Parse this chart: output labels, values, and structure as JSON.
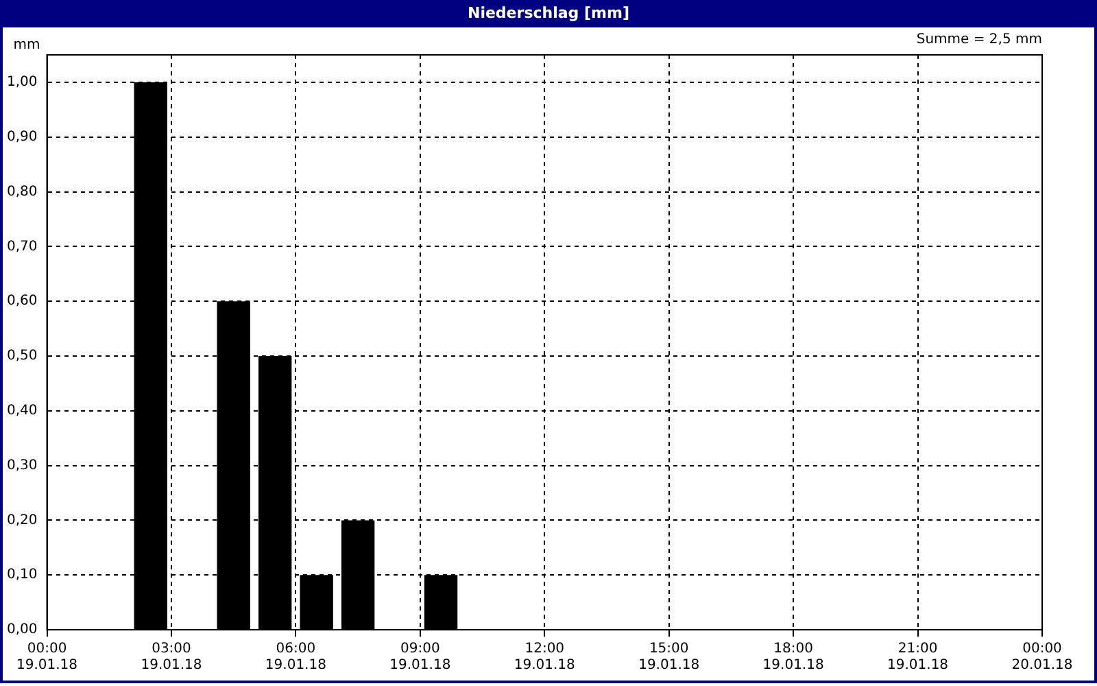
{
  "chart_data": {
    "type": "histogram",
    "title": "Niederschlag [mm]",
    "ylabel": "mm",
    "annotations": [
      "Summe = 2,5 mm"
    ],
    "bins": [
      "--01-19T00:00",
      "--01-19T01:00",
      "--01-19T02:00",
      "--01-19T03:00",
      "--01-19T04:00",
      "--01-19T05:00",
      "--01-19T06:00",
      "--01-19T07:00",
      "--01-19T08:00",
      "--01-19T09:00",
      "--01-19T10:00",
      "--01-19T11:00",
      "--01-19T12:00",
      "--01-19T13:00",
      "--01-19T14:00",
      "--01-19T15:00",
      "--01-19T16:00",
      "--01-19T17:00",
      "--01-19T18:00",
      "--01-19T19:00",
      "--01-19T20:00",
      "--01-19T21:00",
      "--01-19T22:00",
      "--01-19T23:00",
      "--01-20T00:00"
    ],
    "values": [
      0,
      0,
      1.0,
      0,
      0.6,
      0.5,
      0.1,
      0.2,
      0,
      0.1,
      0,
      0,
      0,
      0,
      0,
      0,
      0,
      0,
      0,
      0,
      0,
      0,
      0,
      0
    ],
    "color": "#000000",
    "xlim": [
      "--01-19T00:00",
      "--01-20T00:00"
    ],
    "xticks": [
      {
        "value": "--01-19T00:00",
        "label": "00:00\n19.01.18"
      },
      {
        "value": "--01-19T03:00",
        "label": "03:00\n19.01.18"
      },
      {
        "value": "--01-19T06:00",
        "label": "06:00\n19.01.18"
      },
      {
        "value": "--01-19T09:00",
        "label": "09:00\n19.01.18"
      },
      {
        "value": "--01-19T12:00",
        "label": "12:00\n19.01.18"
      },
      {
        "value": "--01-19T15:00",
        "label": "15:00\n19.01.18"
      },
      {
        "value": "--01-19T18:00",
        "label": "18:00\n19.01.18"
      },
      {
        "value": "--01-19T21:00",
        "label": "21:00\n19.01.18"
      },
      {
        "value": "--01-20T00:00",
        "label": "00:00\n20.01.18"
      }
    ],
    "ylim": [
      0,
      1.05
    ],
    "yticks": [
      {
        "value": 0,
        "label": "0,00"
      },
      {
        "value": 0.1,
        "label": "0,10"
      },
      {
        "value": 0.2,
        "label": "0,20"
      },
      {
        "value": 0.3,
        "label": "0,30"
      },
      {
        "value": 0.4,
        "label": "0,40"
      },
      {
        "value": 0.5,
        "label": "0,50"
      },
      {
        "value": 0.6,
        "label": "0,60"
      },
      {
        "value": 0.7,
        "label": "0,70"
      },
      {
        "value": 0.8,
        "label": "0,80"
      },
      {
        "value": 0.9,
        "label": "0,90"
      },
      {
        "value": 1.0,
        "label": "1,00"
      }
    ],
    "grid": true,
    "legend": false
  }
}
